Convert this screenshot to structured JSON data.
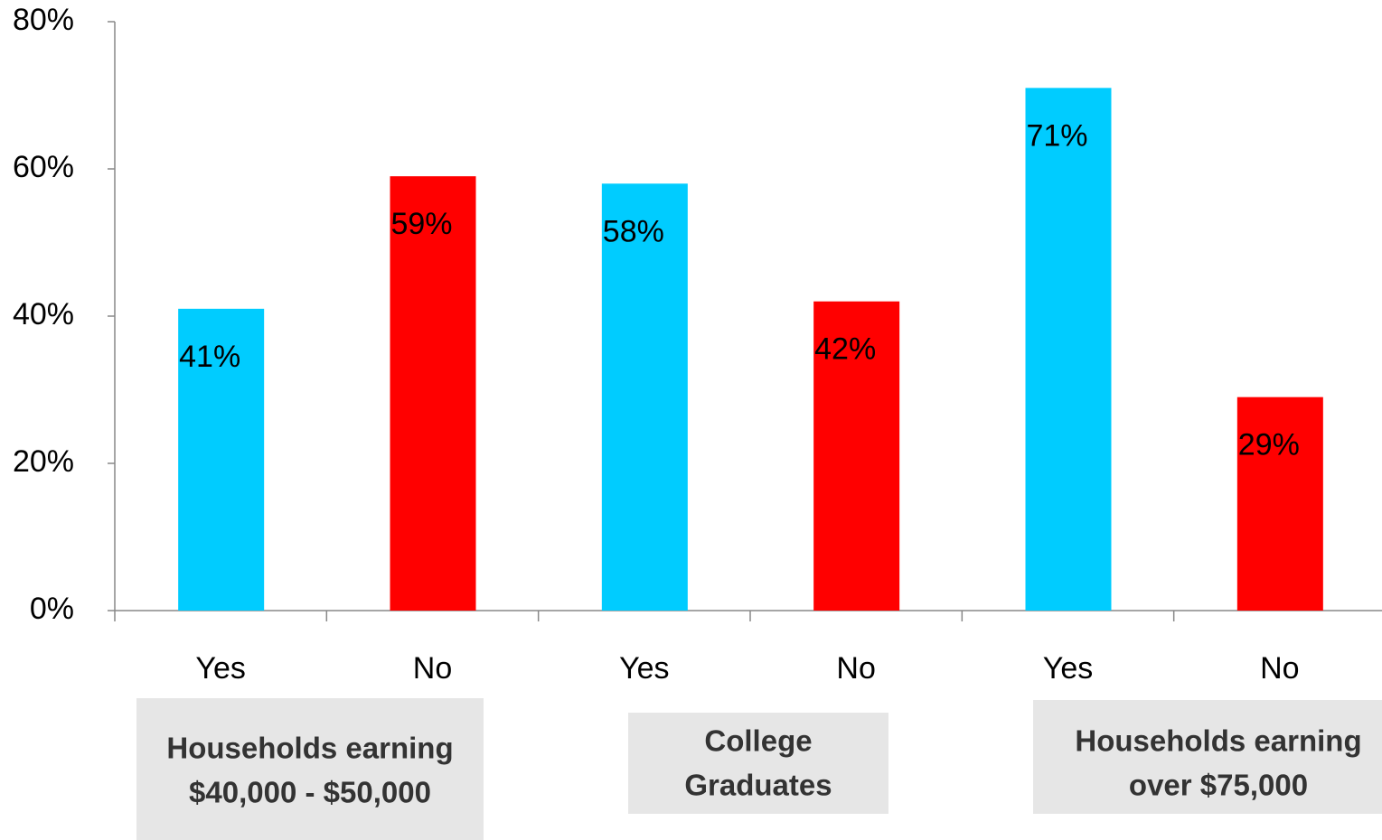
{
  "chart_data": {
    "type": "bar",
    "categories": [
      "Yes",
      "No",
      "Yes",
      "No",
      "Yes",
      "No"
    ],
    "values": [
      41,
      59,
      58,
      42,
      71,
      29
    ],
    "value_labels": [
      "41%",
      "59%",
      "58%",
      "42%",
      "71%",
      "29%"
    ],
    "colors": [
      "#00ccff",
      "#ff0000",
      "#00ccff",
      "#ff0000",
      "#00ccff",
      "#ff0000"
    ],
    "group_labels": [
      [
        "Households earning",
        "$40,000 - $50,000"
      ],
      [
        "College",
        "Graduates"
      ],
      [
        "Households earning",
        "over $75,000"
      ]
    ],
    "ylim": [
      0,
      80
    ],
    "yticks": [
      {
        "value": 0,
        "label": "0%"
      },
      {
        "value": 20,
        "label": "20%"
      },
      {
        "value": 40,
        "label": "40%"
      },
      {
        "value": 60,
        "label": "60%"
      },
      {
        "value": 80,
        "label": "80%"
      }
    ],
    "grid": false
  }
}
